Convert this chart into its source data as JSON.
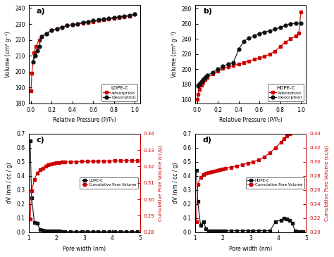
{
  "panel_a": {
    "label": "a)",
    "title": "LDPE-C",
    "adsorption_x": [
      0.001,
      0.01,
      0.03,
      0.05,
      0.08,
      0.1,
      0.15,
      0.2,
      0.25,
      0.3,
      0.35,
      0.4,
      0.45,
      0.5,
      0.55,
      0.6,
      0.65,
      0.7,
      0.75,
      0.8,
      0.85,
      0.9,
      0.95,
      1.0
    ],
    "adsorption_y": [
      188,
      199,
      212,
      216,
      220,
      222,
      224,
      226,
      227,
      228,
      229,
      229.5,
      230,
      230.5,
      231,
      231.5,
      232,
      232.5,
      233,
      233.5,
      234,
      234.5,
      235,
      236
    ],
    "desorption_x": [
      0.02,
      0.04,
      0.06,
      0.08,
      0.1,
      0.15,
      0.2,
      0.25,
      0.3,
      0.35,
      0.4,
      0.45,
      0.5,
      0.55,
      0.6,
      0.65,
      0.7,
      0.75,
      0.8,
      0.85,
      0.9,
      0.95,
      1.0
    ],
    "desorption_y": [
      206,
      210,
      213,
      216,
      222,
      224,
      226,
      227,
      228,
      229,
      229.5,
      230,
      231,
      231.5,
      232,
      232.5,
      233,
      233.5,
      234,
      234.5,
      235,
      235.5,
      236
    ],
    "ylim": [
      180,
      242
    ],
    "yticks": [
      180,
      190,
      200,
      210,
      220,
      230,
      240
    ],
    "ylabel": "Volume (cm³ g⁻¹)",
    "xlabel": "Relative Pressure (P/P₀)"
  },
  "panel_b": {
    "label": "b)",
    "title": "HDPE-C",
    "adsorption_x": [
      0.005,
      0.01,
      0.02,
      0.04,
      0.06,
      0.08,
      0.1,
      0.15,
      0.2,
      0.25,
      0.3,
      0.35,
      0.4,
      0.45,
      0.5,
      0.55,
      0.6,
      0.65,
      0.7,
      0.75,
      0.8,
      0.85,
      0.9,
      0.95,
      0.98,
      1.0
    ],
    "adsorption_y": [
      160,
      167,
      173,
      179,
      183,
      186,
      189,
      194,
      198,
      201,
      203,
      205,
      207,
      209,
      211,
      213,
      215,
      217,
      220,
      224,
      230,
      236,
      240,
      244,
      248,
      276
    ],
    "desorption_x": [
      0.01,
      0.02,
      0.04,
      0.06,
      0.08,
      0.1,
      0.15,
      0.2,
      0.25,
      0.3,
      0.35,
      0.4,
      0.45,
      0.5,
      0.55,
      0.6,
      0.65,
      0.7,
      0.75,
      0.8,
      0.85,
      0.9,
      0.95,
      1.0
    ],
    "desorption_y": [
      178,
      181,
      184,
      186,
      189,
      192,
      196,
      200,
      204,
      207,
      209,
      226,
      237,
      241,
      244,
      247,
      249,
      251,
      253,
      255,
      258,
      260,
      261,
      261
    ],
    "ylim": [
      155,
      285
    ],
    "yticks": [
      160,
      180,
      200,
      220,
      240,
      260,
      280
    ],
    "ylabel": "Volume (cm³ g⁻¹)",
    "xlabel": "Relative Pressure (P/P₀)"
  },
  "panel_c": {
    "label": "c)",
    "title": "LDPE-C",
    "dv_x": [
      1.05,
      1.1,
      1.2,
      1.3,
      1.4,
      1.5,
      1.6,
      1.7,
      1.8,
      1.9,
      2.0,
      2.1,
      2.2,
      2.3,
      2.5,
      2.7,
      2.9,
      3.1,
      3.3,
      3.5,
      3.7,
      3.9,
      4.1,
      4.3,
      4.5,
      4.7,
      4.9
    ],
    "dv_y": [
      0.65,
      0.245,
      0.07,
      0.065,
      0.02,
      0.015,
      0.01,
      0.01,
      0.01,
      0.01,
      0.01,
      0.01,
      0.005,
      0.005,
      0.005,
      0.005,
      0.005,
      0.005,
      0.005,
      0.005,
      0.005,
      0.005,
      0.005,
      0.005,
      0.005,
      0.005,
      0.005
    ],
    "cpv_x": [
      1.05,
      1.1,
      1.2,
      1.3,
      1.4,
      1.5,
      1.6,
      1.7,
      1.8,
      1.9,
      2.0,
      2.1,
      2.2,
      2.3,
      2.5,
      2.7,
      2.9,
      3.1,
      3.3,
      3.5,
      3.7,
      3.9,
      4.1,
      4.3,
      4.5,
      4.7,
      4.9
    ],
    "cpv_y": [
      0.288,
      0.305,
      0.312,
      0.316,
      0.318,
      0.319,
      0.32,
      0.321,
      0.3215,
      0.322,
      0.3223,
      0.3225,
      0.3226,
      0.3227,
      0.3228,
      0.3229,
      0.323,
      0.3231,
      0.3232,
      0.3232,
      0.3233,
      0.3233,
      0.3234,
      0.3234,
      0.3235,
      0.3235,
      0.3236
    ],
    "ylim_left": [
      0,
      0.7
    ],
    "ylim_right": [
      0.28,
      0.34
    ],
    "yticks_left": [
      0.0,
      0.1,
      0.2,
      0.3,
      0.4,
      0.5,
      0.6,
      0.7
    ],
    "yticks_right": [
      0.28,
      0.29,
      0.3,
      0.31,
      0.32,
      0.33,
      0.34
    ],
    "ylabel_left": "dV (nm / cc / g)",
    "ylabel_right": "Cumulative Pore Volume (cc/g)",
    "xlabel": "Pore width (nm)"
  },
  "panel_d": {
    "label": "d)",
    "title": "HDPE-C",
    "dv_x": [
      1.05,
      1.1,
      1.2,
      1.3,
      1.4,
      1.5,
      1.6,
      1.7,
      1.8,
      1.9,
      2.0,
      2.1,
      2.3,
      2.5,
      2.7,
      2.9,
      3.1,
      3.3,
      3.5,
      3.7,
      3.9,
      4.1,
      4.2,
      4.3,
      4.4,
      4.5,
      4.6,
      4.7,
      4.8,
      4.9
    ],
    "dv_y": [
      0.44,
      0.22,
      0.05,
      0.075,
      0.025,
      0.01,
      0.01,
      0.01,
      0.01,
      0.01,
      0.01,
      0.01,
      0.01,
      0.01,
      0.01,
      0.01,
      0.01,
      0.01,
      0.01,
      0.01,
      0.075,
      0.085,
      0.1,
      0.095,
      0.085,
      0.065,
      0.01,
      0.005,
      0.005,
      0.005
    ],
    "cpv_x": [
      1.05,
      1.1,
      1.2,
      1.3,
      1.4,
      1.5,
      1.6,
      1.7,
      1.8,
      1.9,
      2.0,
      2.1,
      2.3,
      2.5,
      2.7,
      2.9,
      3.1,
      3.3,
      3.5,
      3.7,
      3.9,
      4.1,
      4.2,
      4.3,
      4.4,
      4.5,
      4.6,
      4.7,
      4.8,
      4.9
    ],
    "cpv_y": [
      0.215,
      0.268,
      0.278,
      0.282,
      0.284,
      0.285,
      0.286,
      0.287,
      0.288,
      0.289,
      0.29,
      0.291,
      0.292,
      0.294,
      0.296,
      0.298,
      0.3,
      0.303,
      0.307,
      0.313,
      0.32,
      0.328,
      0.333,
      0.337,
      0.34,
      0.342,
      0.343,
      0.343,
      0.344,
      0.344
    ],
    "ylim_left": [
      0,
      0.7
    ],
    "ylim_right": [
      0.2,
      0.34
    ],
    "yticks_left": [
      0.0,
      0.1,
      0.2,
      0.3,
      0.4,
      0.5,
      0.6,
      0.7
    ],
    "yticks_right": [
      0.2,
      0.22,
      0.24,
      0.26,
      0.28,
      0.3,
      0.32,
      0.34
    ],
    "ylabel_left": "dV (nm / cc / g)",
    "ylabel_right": "Cumulative Pore Volume (cc/g)",
    "xlabel": "Pore width (nm)"
  },
  "adsorption_color": "#cc0000",
  "desorption_color": "#111111",
  "bg_color": "#ffffff"
}
